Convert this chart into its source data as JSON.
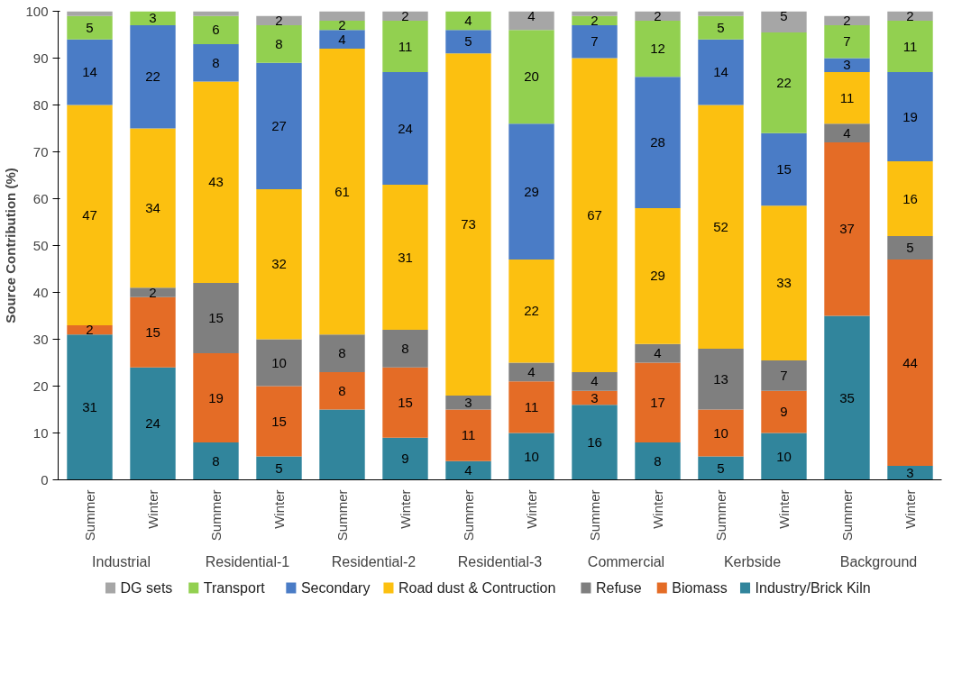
{
  "chart_data": {
    "type": "bar",
    "stacked": true,
    "ylabel": "Source Contribution (%)",
    "categories": [
      "Summer",
      "Winter",
      "Summer",
      "Winter",
      "Summer",
      "Winter",
      "Summer",
      "Winter",
      "Summer",
      "Winter",
      "Summer",
      "Winter",
      "Summer",
      "Winter"
    ],
    "annotations": [
      "Industrial",
      "Residential-1",
      "Residential-2",
      "Residential-3",
      "Commercial",
      "Kerbside",
      "Background"
    ],
    "ylim": [
      0,
      100
    ],
    "yticks": [
      0,
      10,
      20,
      30,
      40,
      50,
      60,
      70,
      80,
      90,
      100
    ],
    "grid": false,
    "legend": "bottom",
    "series": [
      {
        "name": "Industry/Brick Kiln",
        "color": "#31859c",
        "values": [
          31,
          24,
          8,
          5,
          15,
          9,
          4,
          10,
          16,
          8,
          5,
          10,
          35,
          3
        ],
        "value_labels": [
          "31",
          "24",
          "8",
          "5",
          null,
          "9",
          "4",
          "10",
          "16",
          "8",
          "5",
          "10",
          "35",
          "3"
        ]
      },
      {
        "name": "Biomass",
        "color": "#e46c26",
        "values": [
          2,
          15,
          19,
          15,
          8,
          15,
          11,
          11,
          3,
          17,
          10,
          9,
          37,
          44
        ],
        "value_labels": [
          "2",
          "15",
          "19",
          "15",
          "8",
          "15",
          "11",
          "11",
          "3",
          "17",
          "10",
          "9",
          "37",
          "44"
        ]
      },
      {
        "name": "Refuse",
        "color": "#7f7f7f",
        "values": [
          0,
          2,
          15,
          10,
          8,
          8,
          3,
          4,
          4,
          4,
          13,
          6.5,
          4,
          5
        ],
        "value_labels": [
          null,
          "2",
          "15",
          "10",
          "8",
          "8",
          "3",
          "4",
          "4",
          "4",
          "13",
          "7",
          "4",
          "5"
        ]
      },
      {
        "name": "Road dust & Contruction",
        "color": "#fcc010",
        "values": [
          47,
          34,
          43,
          32,
          61,
          31,
          73,
          22,
          67,
          29,
          52,
          33,
          11,
          16
        ],
        "value_labels": [
          "47",
          "34",
          "43",
          "32",
          "61",
          "31",
          "73",
          "22",
          "67",
          "29",
          "52",
          "33",
          "11",
          "16"
        ]
      },
      {
        "name": "Secondary",
        "color": "#4a7cc6",
        "values": [
          14,
          22,
          8,
          27,
          4,
          24,
          5,
          29,
          7,
          28,
          14,
          15.5,
          3,
          19
        ],
        "value_labels": [
          "14",
          "22",
          "8",
          "27",
          "4",
          "24",
          "5",
          "29",
          "7",
          "28",
          "14",
          "15",
          "3",
          "19"
        ]
      },
      {
        "name": "Transport",
        "color": "#92d050",
        "values": [
          5,
          3,
          6,
          8,
          2,
          11,
          4,
          20,
          2,
          12,
          5,
          21.5,
          7,
          11
        ],
        "value_labels": [
          "5",
          "3",
          "6",
          "8",
          "2",
          "11",
          "4",
          "20",
          "2",
          "12",
          "5",
          "22",
          "7",
          "11"
        ]
      },
      {
        "name": "DG sets",
        "color": "#a6a6a6",
        "values": [
          1,
          0,
          1,
          2,
          2,
          2,
          0,
          4,
          1,
          2,
          1,
          4.5,
          2,
          2
        ],
        "value_labels": [
          null,
          null,
          null,
          "2",
          null,
          "2",
          null,
          "4",
          null,
          "2",
          null,
          "5",
          "2",
          "2"
        ]
      }
    ]
  }
}
